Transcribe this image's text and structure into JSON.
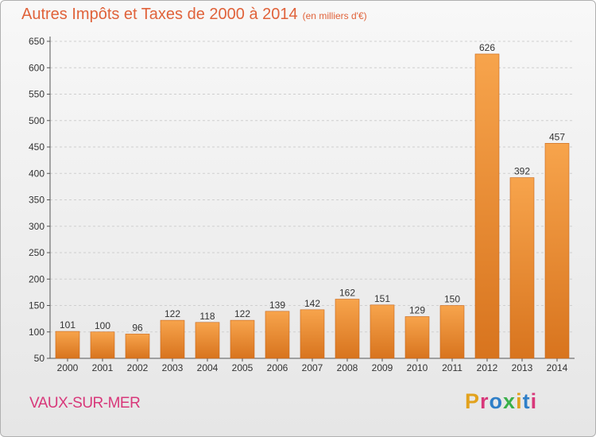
{
  "header": {
    "title": "Autres Impôts et Taxes de 2000 à 2014",
    "unit": "(en milliers d'€)"
  },
  "footer": {
    "place": "VAUX-SUR-MER",
    "brand": "Proxiti"
  },
  "colors": {
    "title": "#e0623a",
    "place": "#d8387a",
    "bar_light": "#f7a44c",
    "bar_dark": "#d8741e",
    "grid": "#cfcfcf",
    "brand_letters": [
      "#e2a21d",
      "#d8387a",
      "#2f7fc8",
      "#3bb04a",
      "#e2a21d",
      "#2f7fc8",
      "#d8387a"
    ]
  },
  "chart_data": {
    "type": "bar",
    "title": "Autres Impôts et Taxes de 2000 à 2014",
    "subtitle": "(en milliers d'€)",
    "xlabel": "",
    "ylabel": "",
    "categories": [
      "2000",
      "2001",
      "2002",
      "2003",
      "2004",
      "2005",
      "2006",
      "2007",
      "2008",
      "2009",
      "2010",
      "2011",
      "2012",
      "2013",
      "2014"
    ],
    "values": [
      101,
      100,
      96,
      122,
      118,
      122,
      139,
      142,
      162,
      151,
      129,
      150,
      626,
      392,
      457
    ],
    "ylim": [
      50,
      650
    ],
    "yticks": [
      50,
      100,
      150,
      200,
      250,
      300,
      350,
      400,
      450,
      500,
      550,
      600,
      650
    ],
    "grid": true,
    "legend": "none"
  }
}
